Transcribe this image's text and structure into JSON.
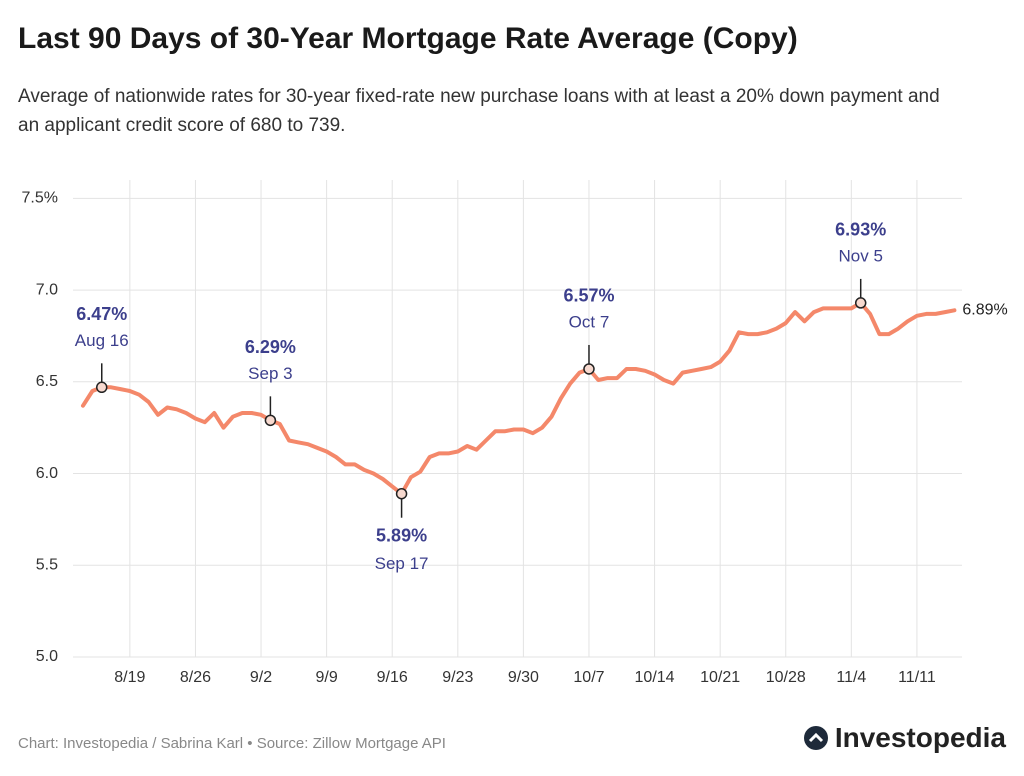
{
  "title": "Last 90 Days of 30-Year Mortgage Rate Average (Copy)",
  "subtitle": "Average of nationwide rates for 30-year fixed-rate new purchase loans with at least a 20% down payment and an applicant credit score of 680 to 739.",
  "source": "Chart: Investopedia / Sabrina Karl • Source: Zillow Mortgage API",
  "logo": "Investopedia",
  "chart_data": {
    "type": "line",
    "color": "#f4886a",
    "grid": true,
    "ylim": [
      5.0,
      7.6
    ],
    "yticks": [
      {
        "value": 5.0,
        "label": "5.0"
      },
      5.5,
      {
        "value": 6.0,
        "label": "6.0"
      },
      6.5,
      {
        "value": 7.0,
        "label": "7.0"
      },
      {
        "value": 7.5,
        "label": "7.5%"
      }
    ],
    "categories": [
      null,
      null,
      null,
      null,
      null,
      "8/19",
      null,
      null,
      null,
      null,
      null,
      null,
      "8/26",
      null,
      null,
      null,
      null,
      null,
      null,
      "9/2",
      null,
      null,
      null,
      null,
      null,
      null,
      "9/9",
      null,
      null,
      null,
      null,
      null,
      null,
      "9/16",
      null,
      null,
      null,
      null,
      null,
      null,
      "9/23",
      null,
      null,
      null,
      null,
      null,
      null,
      "9/30",
      null,
      null,
      null,
      null,
      null,
      null,
      "10/7",
      null,
      null,
      null,
      null,
      null,
      null,
      "10/14",
      null,
      null,
      null,
      null,
      null,
      null,
      "10/21",
      null,
      null,
      null,
      null,
      null,
      null,
      "10/28",
      null,
      null,
      null,
      null,
      null,
      null,
      "11/4",
      null,
      null,
      null,
      null,
      null,
      null,
      "11/11",
      null,
      null,
      null,
      null
    ],
    "values": [
      6.37,
      6.45,
      6.47,
      6.47,
      6.46,
      6.45,
      6.43,
      6.39,
      6.32,
      6.36,
      6.35,
      6.33,
      6.3,
      6.28,
      6.33,
      6.25,
      6.31,
      6.33,
      6.33,
      6.32,
      6.29,
      6.27,
      6.18,
      6.17,
      6.16,
      6.14,
      6.12,
      6.09,
      6.05,
      6.05,
      6.02,
      6.0,
      5.97,
      5.93,
      5.89,
      5.98,
      6.01,
      6.09,
      6.11,
      6.11,
      6.12,
      6.15,
      6.13,
      6.18,
      6.23,
      6.23,
      6.24,
      6.24,
      6.22,
      6.25,
      6.31,
      6.41,
      6.49,
      6.55,
      6.57,
      6.51,
      6.52,
      6.52,
      6.57,
      6.57,
      6.56,
      6.54,
      6.51,
      6.49,
      6.55,
      6.56,
      6.57,
      6.58,
      6.61,
      6.67,
      6.77,
      6.76,
      6.76,
      6.77,
      6.79,
      6.82,
      6.88,
      6.83,
      6.88,
      6.9,
      6.9,
      6.9,
      6.9,
      6.93,
      6.87,
      6.76,
      6.76,
      6.79,
      6.83,
      6.86,
      6.87,
      6.87,
      6.88,
      6.89
    ],
    "value_labels": [
      null,
      null,
      "6.47%",
      null,
      null,
      null,
      null,
      null,
      null,
      null,
      null,
      null,
      null,
      null,
      null,
      null,
      null,
      null,
      null,
      null,
      "6.29%",
      null,
      null,
      null,
      null,
      null,
      null,
      null,
      null,
      null,
      null,
      null,
      null,
      null,
      "5.89%",
      null,
      null,
      null,
      null,
      null,
      null,
      null,
      null,
      null,
      null,
      null,
      null,
      null,
      null,
      null,
      null,
      null,
      null,
      null,
      "6.57%",
      null,
      null,
      null,
      null,
      null,
      null,
      null,
      null,
      null,
      null,
      null,
      null,
      null,
      null,
      null,
      null,
      null,
      null,
      null,
      null,
      null,
      null,
      null,
      null,
      null,
      null,
      null,
      null,
      "6.93%",
      null,
      null,
      null,
      null,
      null,
      null,
      null,
      null,
      null,
      "6.89%"
    ],
    "point_labels": [
      null,
      null,
      "Aug 16",
      null,
      null,
      null,
      null,
      null,
      null,
      null,
      null,
      null,
      null,
      null,
      null,
      null,
      null,
      null,
      null,
      null,
      "Sep 3",
      null,
      null,
      null,
      null,
      null,
      null,
      null,
      null,
      null,
      null,
      null,
      null,
      null,
      "Sep 17",
      null,
      null,
      null,
      null,
      null,
      null,
      null,
      null,
      null,
      null,
      null,
      null,
      null,
      null,
      null,
      null,
      null,
      null,
      null,
      "Oct 7",
      null,
      null,
      null,
      null,
      null,
      null,
      null,
      null,
      null,
      null,
      null,
      null,
      null,
      null,
      null,
      null,
      null,
      null,
      null,
      null,
      null,
      null,
      null,
      null,
      null,
      null,
      null,
      null,
      "Nov 5",
      null,
      null,
      null,
      null,
      null,
      null,
      null,
      null,
      null,
      null
    ]
  }
}
